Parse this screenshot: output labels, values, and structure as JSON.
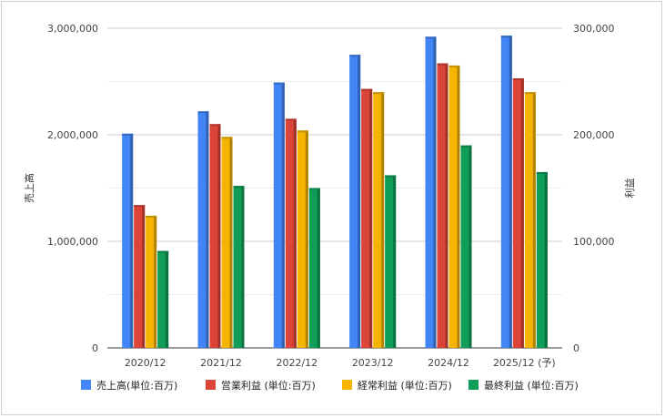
{
  "chart_data": {
    "type": "bar",
    "categories": [
      "2020/12",
      "2021/12",
      "2022/12",
      "2023/12",
      "2024/12",
      "2025/12 (予)"
    ],
    "left_axis": {
      "label": "売上高",
      "ylim": [
        0,
        3000000
      ],
      "ticks": [
        0,
        1000000,
        2000000,
        3000000
      ],
      "tick_labels": [
        "0",
        "1,000,000",
        "2,000,000",
        "3,000,000"
      ]
    },
    "right_axis": {
      "label": "利益",
      "ylim": [
        0,
        300000
      ],
      "ticks": [
        0,
        100000,
        200000,
        300000
      ],
      "tick_labels": [
        "0",
        "100,000",
        "200,000",
        "300,000"
      ]
    },
    "series": [
      {
        "name": "売上高(単位:百万)",
        "axis": "left",
        "color": "#4285f4",
        "values": [
          2010000,
          2220000,
          2490000,
          2750000,
          2920000,
          2930000
        ]
      },
      {
        "name": "営業利益 (単位:百万)",
        "axis": "right",
        "color": "#db4437",
        "values": [
          134000,
          210000,
          215000,
          243000,
          267000,
          253000
        ]
      },
      {
        "name": "経常利益 (単位:百万)",
        "axis": "right",
        "color": "#f4b400",
        "values": [
          124000,
          198000,
          204000,
          240000,
          265000,
          240000
        ]
      },
      {
        "name": "最終利益 (単位:百万)",
        "axis": "right",
        "color": "#0f9d58",
        "values": [
          91000,
          152000,
          150000,
          162000,
          190000,
          165000
        ]
      }
    ],
    "grid": true,
    "legend_position": "bottom"
  }
}
